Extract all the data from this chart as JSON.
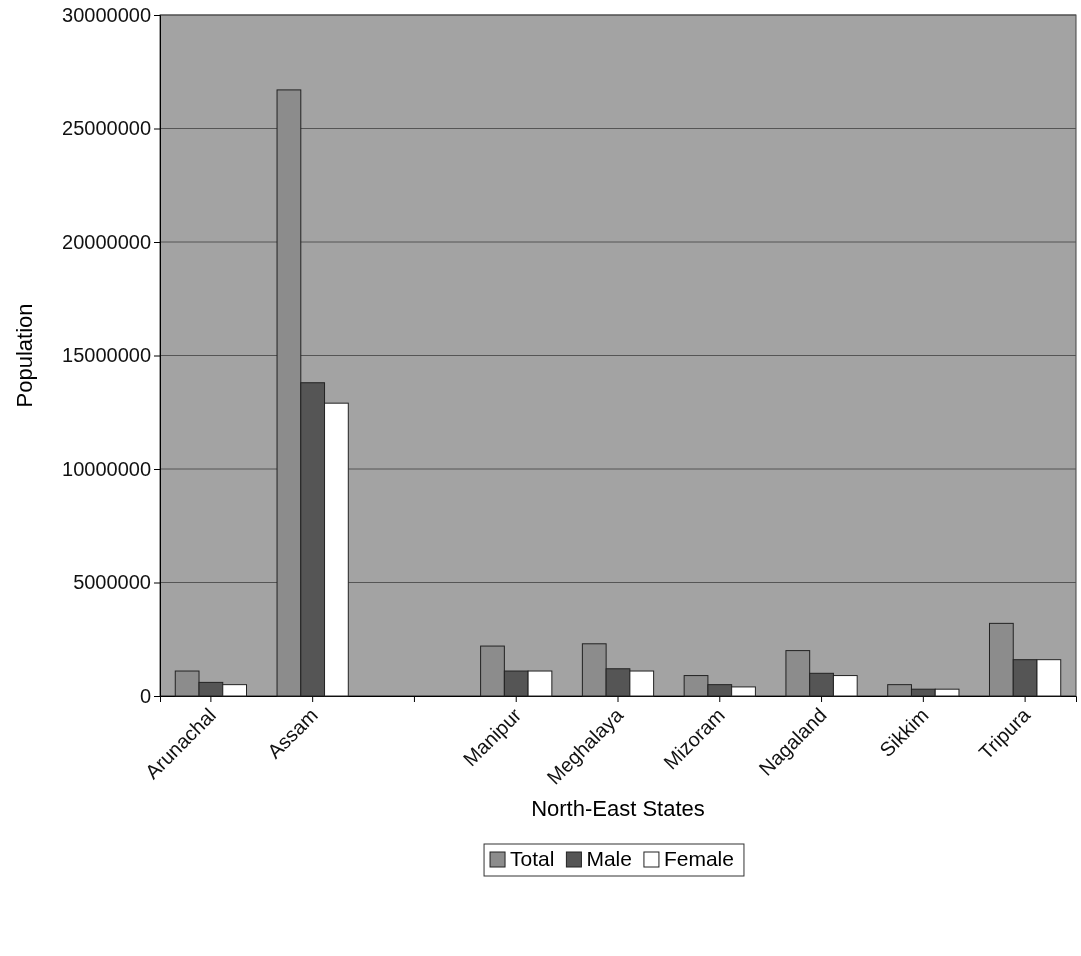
{
  "chart_data": {
    "type": "bar",
    "xlabel": "North-East States",
    "ylabel": "Population",
    "categories": [
      "Arunachal",
      "Assam",
      null,
      "Manipur",
      "Meghalaya",
      "Mizoram",
      "Nagaland",
      "Sikkim",
      "Tripura"
    ],
    "series": [
      {
        "name": "Total",
        "color": "#8c8c8c",
        "values": [
          1100000,
          26700000,
          null,
          2200000,
          2300000,
          900000,
          2000000,
          500000,
          3200000
        ]
      },
      {
        "name": "Male",
        "color": "#555555",
        "values": [
          600000,
          13800000,
          null,
          1100000,
          1200000,
          500000,
          1000000,
          300000,
          1600000
        ]
      },
      {
        "name": "Female",
        "color": "#ffffff",
        "values": [
          500000,
          12900000,
          null,
          1100000,
          1100000,
          400000,
          900000,
          300000,
          1600000
        ]
      }
    ],
    "ylim": [
      0,
      30000000
    ],
    "yticks": [
      0,
      5000000,
      10000000,
      15000000,
      20000000,
      25000000,
      30000000
    ],
    "grid": "y",
    "legend": "bottom"
  }
}
